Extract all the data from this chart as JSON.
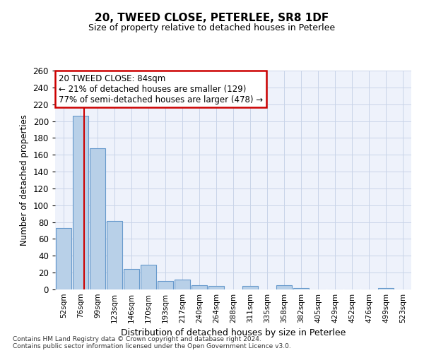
{
  "title1": "20, TWEED CLOSE, PETERLEE, SR8 1DF",
  "title2": "Size of property relative to detached houses in Peterlee",
  "xlabel": "Distribution of detached houses by size in Peterlee",
  "ylabel": "Number of detached properties",
  "categories": [
    "52sqm",
    "76sqm",
    "99sqm",
    "123sqm",
    "146sqm",
    "170sqm",
    "193sqm",
    "217sqm",
    "240sqm",
    "264sqm",
    "288sqm",
    "311sqm",
    "335sqm",
    "358sqm",
    "382sqm",
    "405sqm",
    "429sqm",
    "452sqm",
    "476sqm",
    "499sqm",
    "523sqm"
  ],
  "values": [
    73,
    206,
    168,
    81,
    24,
    29,
    10,
    12,
    5,
    4,
    0,
    4,
    0,
    5,
    2,
    0,
    0,
    0,
    0,
    2,
    0
  ],
  "bar_color": "#b8d0e8",
  "bar_edge_color": "#6699cc",
  "red_line_x": 1.2,
  "annotation_text": "20 TWEED CLOSE: 84sqm\n← 21% of detached houses are smaller (129)\n77% of semi-detached houses are larger (478) →",
  "annotation_box_color": "#ffffff",
  "annotation_box_edge": "#cc0000",
  "red_line_color": "#cc0000",
  "grid_color": "#c8d4e8",
  "background_color": "#eef2fb",
  "ylim": [
    0,
    260
  ],
  "yticks": [
    0,
    20,
    40,
    60,
    80,
    100,
    120,
    140,
    160,
    180,
    200,
    220,
    240,
    260
  ],
  "footer1": "Contains HM Land Registry data © Crown copyright and database right 2024.",
  "footer2": "Contains public sector information licensed under the Open Government Licence v3.0."
}
